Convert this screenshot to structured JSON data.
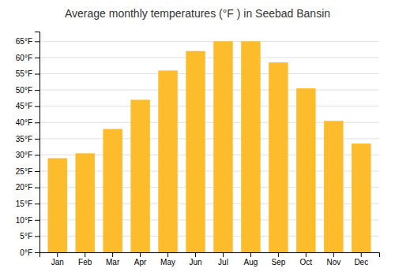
{
  "chart_data": {
    "type": "bar",
    "title": "Average monthly temperatures (°F ) in Seebad Bansin",
    "categories": [
      "Jan",
      "Feb",
      "Mar",
      "Apr",
      "May",
      "Jun",
      "Jul",
      "Aug",
      "Sep",
      "Oct",
      "Nov",
      "Dec"
    ],
    "values": [
      29,
      30.5,
      38,
      47,
      56,
      62,
      65,
      65,
      58.5,
      50.5,
      40.5,
      33.5
    ],
    "color": "#FDBC2C",
    "ylim": [
      0,
      68
    ],
    "yticks": [
      {
        "value": 0,
        "label": "0°F"
      },
      {
        "value": 5,
        "label": "5°F"
      },
      {
        "value": 10,
        "label": "10°F"
      },
      {
        "value": 15,
        "label": "15°F"
      },
      {
        "value": 20,
        "label": "20°F"
      },
      {
        "value": 25,
        "label": "25°F"
      },
      {
        "value": 30,
        "label": "30°F"
      },
      {
        "value": 35,
        "label": "35°F"
      },
      {
        "value": 40,
        "label": "40°F"
      },
      {
        "value": 45,
        "label": "45°F"
      },
      {
        "value": 50,
        "label": "50°F"
      },
      {
        "value": 55,
        "label": "55°F"
      },
      {
        "value": 60,
        "label": "60°F"
      },
      {
        "value": 65,
        "label": "65°F"
      }
    ],
    "grid": true
  }
}
